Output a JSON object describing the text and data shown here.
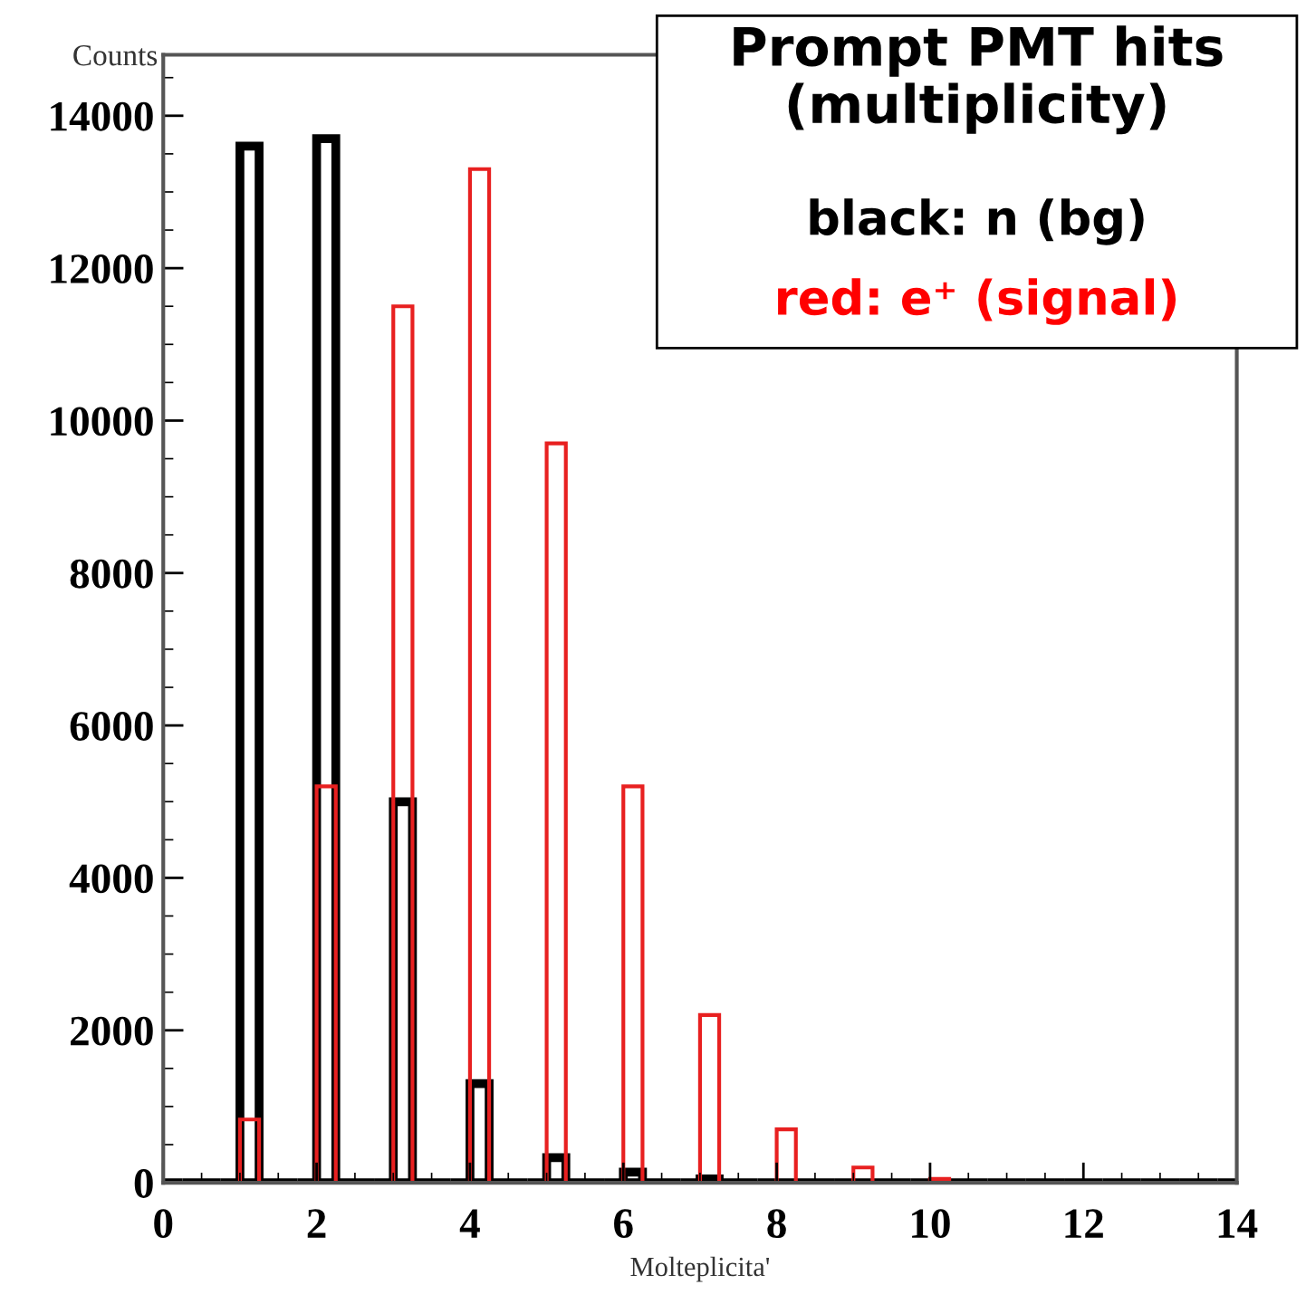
{
  "chart_data": {
    "type": "histogram",
    "title": "Prompt PMT hits\n(multiplicity)",
    "xlabel": "Molteplicita'",
    "ylabel": "Counts",
    "bins": [
      0,
      0.25,
      0.5,
      0.75,
      1,
      1.25,
      1.5,
      1.75,
      2,
      2.25,
      2.5,
      2.75,
      3,
      3.25,
      3.5,
      3.75,
      4,
      4.25,
      4.5,
      4.75,
      5,
      5.25,
      5.5,
      5.75,
      6,
      6.25,
      6.5,
      6.75,
      7,
      7.25,
      7.5,
      7.75,
      8,
      8.25,
      8.5,
      8.75,
      9,
      9.25,
      9.5,
      9.75,
      10,
      10.25,
      10.5,
      10.75,
      11,
      11.25,
      11.5,
      11.75,
      12,
      12.25,
      12.5,
      12.75,
      13,
      13.25,
      13.5,
      13.75,
      14
    ],
    "series": [
      {
        "name": "black: n (bg)",
        "color": "#000000",
        "values": [
          0,
          0,
          0,
          0,
          13600,
          0,
          0,
          0,
          13700,
          0,
          0,
          0,
          5000,
          0,
          0,
          0,
          1300,
          0,
          0,
          0,
          330,
          0,
          0,
          0,
          140,
          0,
          0,
          0,
          50,
          0,
          0,
          0,
          0,
          0,
          0,
          0,
          0,
          0,
          0,
          0,
          0,
          0,
          0,
          0,
          0,
          0,
          0,
          0,
          0,
          0,
          0,
          0,
          0,
          0,
          0,
          0
        ]
      },
      {
        "name": "red: e⁺ (signal)",
        "color": "#e82020",
        "values": [
          0,
          0,
          0,
          0,
          830,
          0,
          0,
          0,
          5200,
          0,
          0,
          0,
          11500,
          0,
          0,
          0,
          13300,
          0,
          0,
          0,
          9700,
          0,
          0,
          0,
          5200,
          0,
          0,
          0,
          2200,
          0,
          0,
          0,
          700,
          0,
          0,
          0,
          200,
          0,
          0,
          0,
          50,
          0,
          0,
          0,
          0,
          0,
          0,
          0,
          0,
          0,
          0,
          0,
          0,
          0,
          0,
          0
        ]
      }
    ],
    "xlim": [
      0,
      14
    ],
    "xticks": [
      0,
      2,
      4,
      6,
      8,
      10,
      12,
      14
    ],
    "ylim": [
      0,
      14800
    ],
    "yticks": [
      0,
      2000,
      4000,
      6000,
      8000,
      10000,
      12000,
      14000
    ],
    "grid": false,
    "legend": "top right"
  }
}
